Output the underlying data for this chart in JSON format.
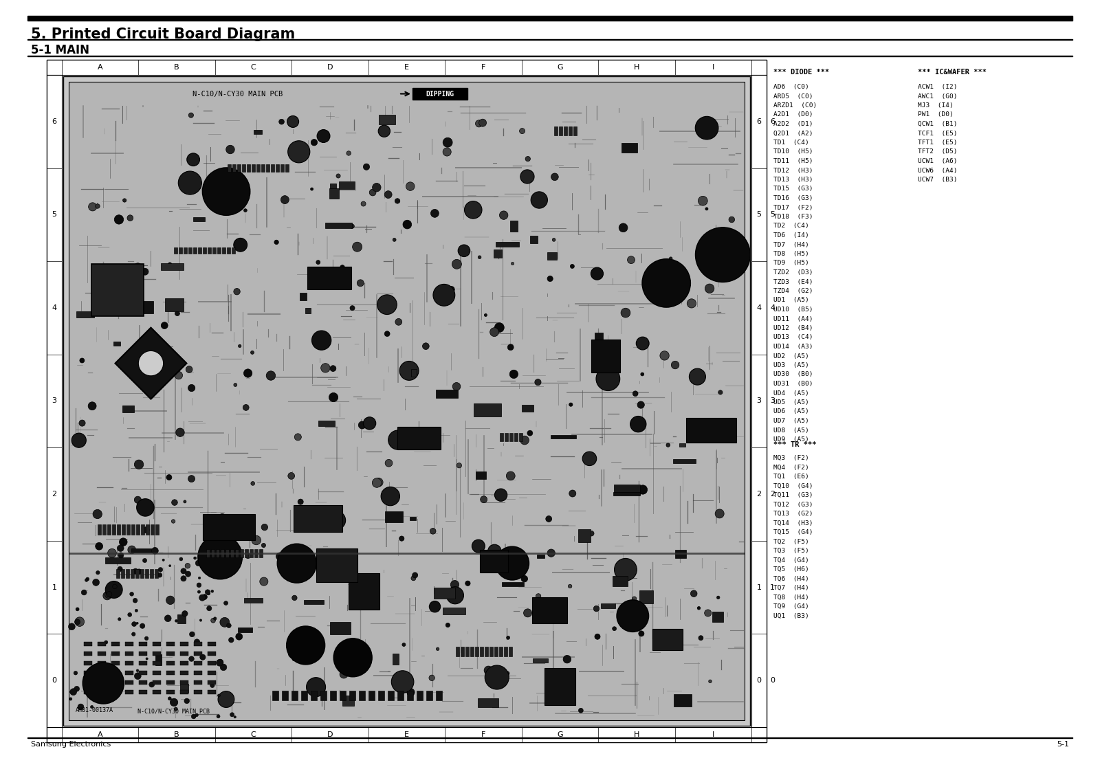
{
  "title": "5. Printed Circuit Board Diagram",
  "subtitle": "5-1 MAIN",
  "bg_color": "#ffffff",
  "title_fontsize": 15,
  "subtitle_fontsize": 12,
  "footer_left": "Samsung Electronics",
  "footer_right": "5-1",
  "diode_header": "*** DIODE ***",
  "ic_header": "*** IC&WAFER ***",
  "tr_header": "*** TR ***",
  "diode_list": [
    "AD6  (C0)",
    "ARD5  (C0)",
    "ARZD1  (C0)",
    "A2D1  (D0)",
    "A2D2  (D1)",
    "Q2D1  (A2)",
    "TD1  (C4)",
    "TD10  (H5)",
    "TD11  (H5)",
    "TD12  (H3)",
    "TD13  (H3)",
    "TD15  (G3)",
    "TD16  (G3)",
    "TD17  (F2)",
    "TD18  (F3)",
    "TD2  (C4)",
    "TD6  (I4)",
    "TD7  (H4)",
    "TD8  (H5)",
    "TD9  (H5)",
    "TZD2  (D3)",
    "TZD3  (E4)",
    "TZD4  (G2)",
    "UD1  (A5)",
    "UD10  (B5)",
    "UD11  (A4)",
    "UD12  (B4)",
    "UD13  (C4)",
    "UD14  (A3)",
    "UD2  (A5)",
    "UD3  (A5)",
    "UD30  (B0)",
    "UD31  (B0)",
    "UD4  (A5)",
    "UD5  (A5)",
    "UD6  (A5)",
    "UD7  (A5)",
    "UD8  (A5)",
    "UD9  (A5)"
  ],
  "ic_list": [
    "ACW1  (I2)",
    "AWC1  (G0)",
    "MJ3  (I4)",
    "PW1  (D0)",
    "QCW1  (B1)",
    "TCF1  (E5)",
    "TFT1  (E5)",
    "TFT2  (D5)",
    "UCW1  (A6)",
    "UCW6  (A4)",
    "UCW7  (B3)"
  ],
  "tr_list": [
    "MQ3  (F2)",
    "MQ4  (F2)",
    "TQ1  (E6)",
    "TQ10  (G4)",
    "TQ11  (G3)",
    "TQ12  (G3)",
    "TQ13  (G2)",
    "TQ14  (H3)",
    "TQ15  (G4)",
    "TQ2  (F5)",
    "TQ3  (F5)",
    "TQ4  (G4)",
    "TQ5  (H6)",
    "TQ6  (H4)",
    "TQ7  (H4)",
    "TQ8  (H4)",
    "TQ9  (G4)",
    "UQ1  (B3)"
  ],
  "pcb_label": "N-C10/N-CY30 MAIN PCB",
  "pcb_bottom_label": "N-C10/N-CY30 MAIN PCB",
  "dipping_label": "DIPPING",
  "grid_cols": [
    "A",
    "B",
    "C",
    "D",
    "E",
    "F",
    "G",
    "H",
    "I"
  ],
  "grid_rows": [
    "6",
    "5",
    "4",
    "3",
    "2",
    "1",
    "0"
  ],
  "part_number": "AH81-00137A",
  "board_color": "#c8c8c8",
  "board_inner_color": "#b0b0b0",
  "trace_color": "#888888",
  "component_dark": "#1a1a1a",
  "component_mid": "#3a3a3a"
}
